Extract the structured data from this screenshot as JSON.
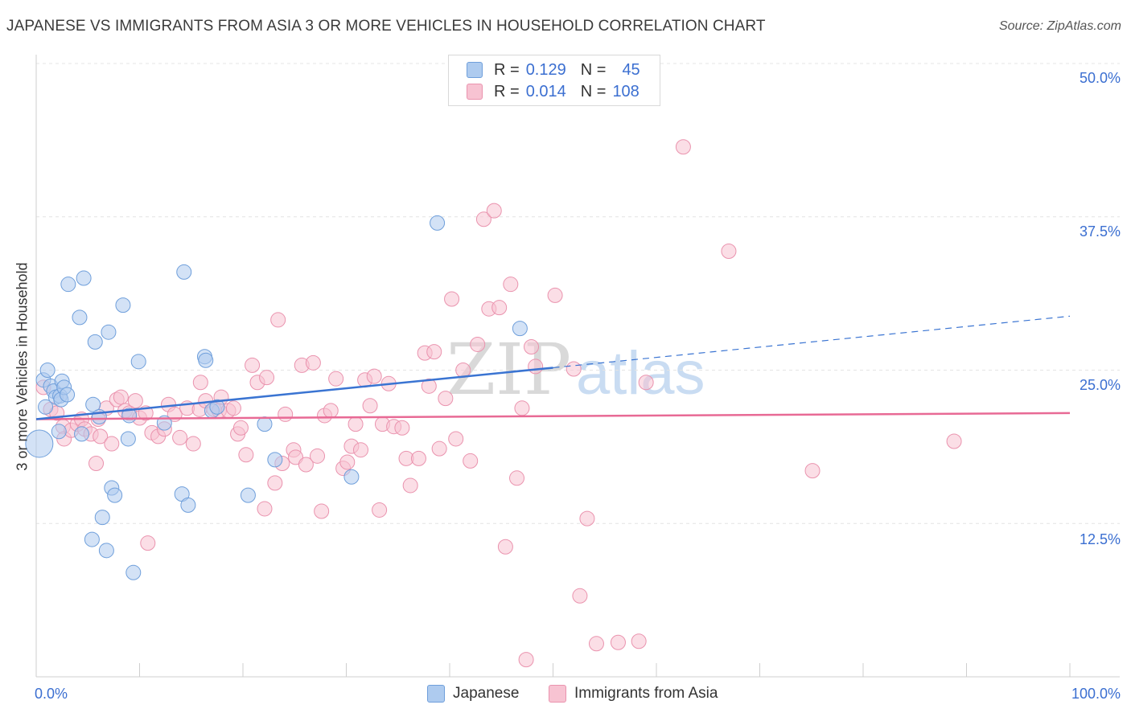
{
  "title": "JAPANESE VS IMMIGRANTS FROM ASIA 3 OR MORE VEHICLES IN HOUSEHOLD CORRELATION CHART",
  "source": "Source: ZipAtlas.com",
  "watermark": {
    "zip": "ZIP",
    "atlas": "atlas"
  },
  "legend": {
    "rows": [
      {
        "r_label": "R =",
        "r_value": "0.129",
        "n_label": "N =",
        "n_value": "45"
      },
      {
        "r_label": "R =",
        "r_value": "0.014",
        "n_label": "N =",
        "n_value": "108"
      }
    ]
  },
  "colors": {
    "japanese_fill": "#aecbef",
    "japanese_stroke": "#6f9fdb",
    "japanese_line": "#3a74d2",
    "asia_fill": "#f7c3d2",
    "asia_stroke": "#ea93ae",
    "asia_line": "#e86a95",
    "tick_text": "#3b6fd1"
  },
  "chart_data": {
    "type": "scatter",
    "title": "JAPANESE VS IMMIGRANTS FROM ASIA 3 OR MORE VEHICLES IN HOUSEHOLD CORRELATION CHART",
    "xlabel": "",
    "ylabel": "3 or more Vehicles in Household",
    "xlim": [
      0,
      100
    ],
    "ylim": [
      0,
      50
    ],
    "x_tick_labels": [
      "0.0%",
      "100.0%"
    ],
    "y_ticks": [
      12.5,
      25.0,
      37.5,
      50.0
    ],
    "y_tick_labels": [
      "12.5%",
      "25.0%",
      "37.5%",
      "50.0%"
    ],
    "grid": true,
    "legend_position": "top-center",
    "series": [
      {
        "name": "Japanese",
        "r": 0.129,
        "n": 45,
        "trend": {
          "x": [
            0,
            50
          ],
          "y": [
            21.0,
            25.2
          ]
        },
        "trend_extension": {
          "x": [
            50,
            100
          ],
          "y": [
            25.2,
            29.4
          ]
        },
        "points": [
          [
            0.3,
            19.0
          ],
          [
            0.7,
            24.2
          ],
          [
            0.9,
            22.0
          ],
          [
            1.1,
            25.0
          ],
          [
            1.4,
            23.7
          ],
          [
            1.7,
            23.3
          ],
          [
            1.9,
            22.8
          ],
          [
            2.2,
            20.0
          ],
          [
            2.3,
            22.9
          ],
          [
            2.4,
            22.6
          ],
          [
            2.5,
            24.1
          ],
          [
            2.7,
            23.6
          ],
          [
            3.0,
            23.0
          ],
          [
            3.1,
            32.0
          ],
          [
            4.2,
            29.3
          ],
          [
            4.6,
            32.5
          ],
          [
            5.4,
            11.2
          ],
          [
            5.5,
            22.2
          ],
          [
            5.7,
            27.3
          ],
          [
            6.1,
            21.2
          ],
          [
            6.4,
            13.0
          ],
          [
            6.8,
            10.3
          ],
          [
            7.0,
            28.1
          ],
          [
            7.3,
            15.4
          ],
          [
            7.6,
            14.8
          ],
          [
            8.4,
            30.3
          ],
          [
            8.9,
            19.4
          ],
          [
            9.0,
            21.3
          ],
          [
            9.4,
            8.5
          ],
          [
            9.9,
            25.7
          ],
          [
            12.4,
            20.7
          ],
          [
            14.1,
            14.9
          ],
          [
            14.3,
            33.0
          ],
          [
            14.7,
            14.0
          ],
          [
            16.3,
            26.1
          ],
          [
            16.4,
            25.8
          ],
          [
            17.0,
            21.7
          ],
          [
            17.5,
            22.0
          ],
          [
            20.5,
            14.8
          ],
          [
            22.1,
            20.6
          ],
          [
            23.1,
            17.7
          ],
          [
            30.5,
            16.3
          ],
          [
            38.8,
            37.0
          ],
          [
            46.8,
            28.4
          ],
          [
            4.4,
            19.8
          ]
        ]
      },
      {
        "name": "Immigrants from Asia",
        "r": 0.014,
        "n": 108,
        "trend": {
          "x": [
            0,
            100
          ],
          "y": [
            21.0,
            21.5
          ]
        },
        "points": [
          [
            0.7,
            23.6
          ],
          [
            1.4,
            21.8
          ],
          [
            2.0,
            21.5
          ],
          [
            2.6,
            20.4
          ],
          [
            2.7,
            19.4
          ],
          [
            3.4,
            20.1
          ],
          [
            4.0,
            20.6
          ],
          [
            4.4,
            21.0
          ],
          [
            4.7,
            20.2
          ],
          [
            5.3,
            19.8
          ],
          [
            5.8,
            17.4
          ],
          [
            6.0,
            21.0
          ],
          [
            6.2,
            19.6
          ],
          [
            6.8,
            21.9
          ],
          [
            7.3,
            19.0
          ],
          [
            7.8,
            22.6
          ],
          [
            8.2,
            22.8
          ],
          [
            8.6,
            21.7
          ],
          [
            9.0,
            21.5
          ],
          [
            9.6,
            22.5
          ],
          [
            10.0,
            21.1
          ],
          [
            10.6,
            21.5
          ],
          [
            10.8,
            10.9
          ],
          [
            11.2,
            19.9
          ],
          [
            11.8,
            19.6
          ],
          [
            12.4,
            20.2
          ],
          [
            12.8,
            22.2
          ],
          [
            13.4,
            21.4
          ],
          [
            13.9,
            19.5
          ],
          [
            14.6,
            21.9
          ],
          [
            15.2,
            19.0
          ],
          [
            15.8,
            21.8
          ],
          [
            15.9,
            24.0
          ],
          [
            16.4,
            22.5
          ],
          [
            17.2,
            21.8
          ],
          [
            17.7,
            21.7
          ],
          [
            17.9,
            22.8
          ],
          [
            18.6,
            21.7
          ],
          [
            19.1,
            21.9
          ],
          [
            19.5,
            19.8
          ],
          [
            19.8,
            20.3
          ],
          [
            20.3,
            18.1
          ],
          [
            20.9,
            25.4
          ],
          [
            21.4,
            24.0
          ],
          [
            22.1,
            13.7
          ],
          [
            22.3,
            24.4
          ],
          [
            23.1,
            15.8
          ],
          [
            23.4,
            29.1
          ],
          [
            23.8,
            17.4
          ],
          [
            24.1,
            21.4
          ],
          [
            24.9,
            18.5
          ],
          [
            25.1,
            17.9
          ],
          [
            25.7,
            25.4
          ],
          [
            26.1,
            17.3
          ],
          [
            26.8,
            25.6
          ],
          [
            27.2,
            18.0
          ],
          [
            27.6,
            13.5
          ],
          [
            27.9,
            21.3
          ],
          [
            28.5,
            21.7
          ],
          [
            29.0,
            24.3
          ],
          [
            29.7,
            17.0
          ],
          [
            30.1,
            17.5
          ],
          [
            30.5,
            18.8
          ],
          [
            30.9,
            20.6
          ],
          [
            31.4,
            18.5
          ],
          [
            31.8,
            24.2
          ],
          [
            32.3,
            22.1
          ],
          [
            32.7,
            24.5
          ],
          [
            33.2,
            13.6
          ],
          [
            33.5,
            20.6
          ],
          [
            34.1,
            23.9
          ],
          [
            34.6,
            20.4
          ],
          [
            35.4,
            20.3
          ],
          [
            35.8,
            17.8
          ],
          [
            36.2,
            15.6
          ],
          [
            37.0,
            17.8
          ],
          [
            37.6,
            26.4
          ],
          [
            38.0,
            23.7
          ],
          [
            38.5,
            26.5
          ],
          [
            39.0,
            18.6
          ],
          [
            39.6,
            22.7
          ],
          [
            40.2,
            30.8
          ],
          [
            40.6,
            19.4
          ],
          [
            41.3,
            25.0
          ],
          [
            42.0,
            17.6
          ],
          [
            42.7,
            27.1
          ],
          [
            43.3,
            37.3
          ],
          [
            43.8,
            30.0
          ],
          [
            44.3,
            38.0
          ],
          [
            44.8,
            30.1
          ],
          [
            45.4,
            10.6
          ],
          [
            45.9,
            32.0
          ],
          [
            46.5,
            16.2
          ],
          [
            47.0,
            21.9
          ],
          [
            47.4,
            1.4
          ],
          [
            47.9,
            26.9
          ],
          [
            48.3,
            25.3
          ],
          [
            50.2,
            31.1
          ],
          [
            52.0,
            25.1
          ],
          [
            52.6,
            6.6
          ],
          [
            53.3,
            12.9
          ],
          [
            54.2,
            2.7
          ],
          [
            56.3,
            2.8
          ],
          [
            58.3,
            2.9
          ],
          [
            59.0,
            24.0
          ],
          [
            62.6,
            43.2
          ],
          [
            67.0,
            34.7
          ],
          [
            75.1,
            16.8
          ],
          [
            88.8,
            19.2
          ]
        ]
      }
    ]
  },
  "bottom_legend": {
    "japanese": "Japanese",
    "asia": "Immigrants from Asia"
  }
}
